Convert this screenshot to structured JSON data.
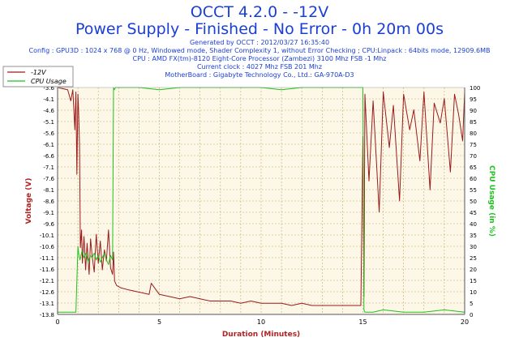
{
  "header": {
    "title": "OCCT 4.2.0 - -12V",
    "subtitle": "Power Supply - Finished - No Error - 0h 20m 00s",
    "info_lines": [
      "Generated by OCCT : 2012/03/27 16:35:40",
      "Config : GPU3D : 1024 x 768 @ 0 Hz, Windowed mode, Shader Complexity 1, without Error Checking ; CPU:Linpack : 64bits mode, 12909.6MB",
      "CPU : AMD FX(tm)-8120 Eight-Core Processor (Zambezi) 3100 Mhz FSB -1 Mhz",
      "Current clock : 4027 Mhz FSB 201 Mhz",
      "MotherBoard : Gigabyte Technology Co., Ltd.: GA-970A-D3"
    ]
  },
  "colors": {
    "title": "#1a3fd6",
    "plot_background": "#fdf7e8",
    "grid": "#c9a76b",
    "voltage_series": "#9b1b1b",
    "cpu_series": "#1fc21f",
    "left_axis_label": "#b22222",
    "right_axis_label": "#1fc21f",
    "x_axis_label": "#b22222"
  },
  "chart_data": {
    "type": "line",
    "xlabel": "Duration (Minutes)",
    "ylabel_left": "Voltage (V)",
    "ylabel_right": "CPU Usage (in %)",
    "xlim": [
      0,
      20
    ],
    "ylim_left": [
      -13.8,
      -3.6
    ],
    "ylim_right": [
      0,
      100
    ],
    "x_ticks": [
      "0",
      "5",
      "10",
      "15",
      "20"
    ],
    "y_left_ticks": [
      "-3.6",
      "-4.1",
      "-4.6",
      "-5.1",
      "-5.6",
      "-6.1",
      "-6.6",
      "-7.1",
      "-7.6",
      "-8.1",
      "-8.6",
      "-9.1",
      "-9.6",
      "-10.1",
      "-10.6",
      "-11.1",
      "-11.6",
      "-12.1",
      "-12.6",
      "-13.1",
      "-13.8"
    ],
    "y_right_ticks": [
      "0",
      "5",
      "10",
      "15",
      "20",
      "25",
      "30",
      "35",
      "40",
      "45",
      "50",
      "55",
      "60",
      "65",
      "70",
      "75",
      "80",
      "85",
      "90",
      "95",
      "100"
    ],
    "grid": true,
    "legend_position": "top-left",
    "series": [
      {
        "name": "-12V",
        "axis": "left",
        "x": [
          0,
          0.5,
          0.65,
          0.75,
          0.85,
          0.9,
          0.95,
          1.0,
          1.03,
          1.08,
          1.12,
          1.18,
          1.22,
          1.3,
          1.38,
          1.45,
          1.55,
          1.62,
          1.7,
          1.8,
          1.9,
          2.0,
          2.1,
          2.2,
          2.3,
          2.4,
          2.5,
          2.6,
          2.7,
          2.75,
          2.8,
          2.9,
          3.1,
          3.5,
          4.0,
          4.5,
          4.6,
          5.0,
          5.5,
          6.0,
          6.5,
          7.0,
          7.5,
          8.0,
          8.5,
          9.0,
          9.5,
          10.0,
          10.5,
          11.0,
          11.5,
          12.0,
          12.5,
          13.0,
          13.5,
          14.0,
          14.5,
          14.9,
          15.0,
          15.05,
          15.1,
          15.3,
          15.5,
          15.8,
          16.0,
          16.3,
          16.5,
          16.8,
          17.0,
          17.3,
          17.5,
          17.8,
          18.0,
          18.3,
          18.5,
          18.8,
          19.0,
          19.3,
          19.5,
          19.7,
          19.9,
          20.0
        ],
        "values": [
          -3.6,
          -3.7,
          -4.2,
          -3.7,
          -5.5,
          -3.8,
          -7.5,
          -3.9,
          -4.6,
          -6.2,
          -10.8,
          -10.0,
          -11.5,
          -10.3,
          -11.8,
          -10.6,
          -12.0,
          -10.4,
          -11.2,
          -11.9,
          -10.2,
          -11.5,
          -10.5,
          -11.8,
          -10.9,
          -11.4,
          -10.0,
          -11.7,
          -12.0,
          -11.0,
          -12.3,
          -12.5,
          -12.6,
          -12.7,
          -12.8,
          -12.9,
          -12.4,
          -12.9,
          -13.0,
          -13.1,
          -13.0,
          -13.1,
          -13.2,
          -13.2,
          -13.2,
          -13.3,
          -13.2,
          -13.3,
          -13.3,
          -13.3,
          -13.4,
          -13.3,
          -13.4,
          -13.4,
          -13.4,
          -13.4,
          -13.4,
          -13.4,
          -5.8,
          -13.0,
          -3.9,
          -7.8,
          -4.2,
          -9.2,
          -3.8,
          -6.3,
          -4.4,
          -8.7,
          -3.9,
          -5.5,
          -4.6,
          -6.9,
          -3.8,
          -8.2,
          -4.3,
          -5.2,
          -4.1,
          -7.4,
          -3.9,
          -4.8,
          -6.0,
          -3.8
        ]
      },
      {
        "name": "CPU Usage",
        "axis": "right",
        "x": [
          0,
          0.9,
          1.0,
          1.05,
          1.1,
          1.2,
          1.3,
          1.4,
          1.5,
          1.6,
          1.7,
          1.8,
          1.9,
          2.0,
          2.1,
          2.2,
          2.3,
          2.4,
          2.5,
          2.6,
          2.7,
          2.75,
          2.78,
          2.85,
          3.0,
          4.0,
          5.0,
          6.0,
          7.0,
          8.0,
          9.0,
          10.0,
          11.0,
          12.0,
          13.0,
          14.0,
          14.9,
          15.0,
          15.05,
          15.1,
          15.5,
          16.0,
          17.0,
          18.0,
          19.0,
          20.0
        ],
        "values": [
          1,
          1,
          30,
          26,
          24,
          28,
          25,
          27,
          23,
          26,
          25,
          27,
          24,
          26,
          23,
          25,
          27,
          24,
          22,
          26,
          24,
          100,
          99,
          100,
          100,
          100,
          99,
          100,
          100,
          100,
          100,
          100,
          99,
          100,
          100,
          100,
          100,
          100,
          2,
          1,
          1,
          2,
          1,
          1,
          2,
          1
        ]
      }
    ]
  }
}
